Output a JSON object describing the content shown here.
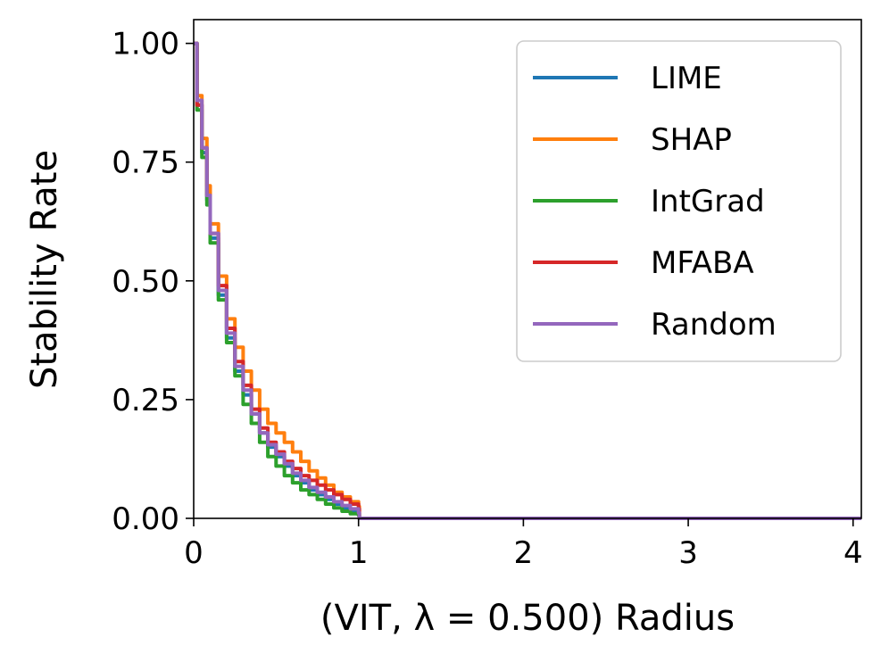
{
  "chart_data": {
    "type": "line",
    "title": "",
    "xlabel": "(VIT, λ = 0.500) Radius",
    "ylabel": "Stability Rate",
    "xlim": [
      0,
      4.05
    ],
    "ylim": [
      0,
      1.05
    ],
    "xticks": [
      0,
      1,
      2,
      3,
      4
    ],
    "xtick_labels": [
      "0",
      "1",
      "2",
      "3",
      "4"
    ],
    "yticks": [
      0,
      0.25,
      0.5,
      0.75,
      1.0
    ],
    "ytick_labels": [
      "0.00",
      "0.25",
      "0.50",
      "0.75",
      "1.00"
    ],
    "grid": false,
    "legend_position": "top-right",
    "series": [
      {
        "name": "LIME",
        "color": "#1f77b4",
        "x": [
          0,
          0.02,
          0.05,
          0.08,
          0.1,
          0.15,
          0.2,
          0.25,
          0.3,
          0.35,
          0.4,
          0.45,
          0.5,
          0.55,
          0.6,
          0.65,
          0.7,
          0.75,
          0.8,
          0.85,
          0.9,
          0.95,
          1.0,
          1.005,
          4.05
        ],
        "y": [
          1.0,
          0.87,
          0.77,
          0.67,
          0.59,
          0.47,
          0.38,
          0.31,
          0.26,
          0.22,
          0.18,
          0.15,
          0.13,
          0.11,
          0.09,
          0.075,
          0.06,
          0.05,
          0.04,
          0.03,
          0.022,
          0.015,
          0.01,
          0.0,
          0.0
        ]
      },
      {
        "name": "SHAP",
        "color": "#ff7f0e",
        "x": [
          0,
          0.02,
          0.05,
          0.08,
          0.1,
          0.15,
          0.2,
          0.25,
          0.3,
          0.35,
          0.4,
          0.45,
          0.5,
          0.55,
          0.6,
          0.65,
          0.7,
          0.75,
          0.8,
          0.85,
          0.9,
          0.95,
          1.0,
          1.005,
          4.05
        ],
        "y": [
          1.0,
          0.89,
          0.8,
          0.7,
          0.62,
          0.51,
          0.42,
          0.36,
          0.31,
          0.27,
          0.23,
          0.2,
          0.18,
          0.16,
          0.14,
          0.12,
          0.1,
          0.085,
          0.07,
          0.055,
          0.045,
          0.035,
          0.025,
          0.0,
          0.0
        ]
      },
      {
        "name": "IntGrad",
        "color": "#2ca02c",
        "x": [
          0,
          0.02,
          0.05,
          0.08,
          0.1,
          0.15,
          0.2,
          0.25,
          0.3,
          0.35,
          0.4,
          0.45,
          0.5,
          0.55,
          0.6,
          0.65,
          0.7,
          0.75,
          0.8,
          0.85,
          0.9,
          0.95,
          1.0,
          1.005,
          4.05
        ],
        "y": [
          1.0,
          0.86,
          0.76,
          0.66,
          0.58,
          0.46,
          0.37,
          0.3,
          0.24,
          0.2,
          0.16,
          0.13,
          0.11,
          0.09,
          0.075,
          0.06,
          0.05,
          0.04,
          0.03,
          0.022,
          0.015,
          0.01,
          0.006,
          0.0,
          0.0
        ]
      },
      {
        "name": "MFABA",
        "color": "#d62728",
        "x": [
          0,
          0.02,
          0.05,
          0.08,
          0.1,
          0.15,
          0.2,
          0.25,
          0.3,
          0.35,
          0.4,
          0.45,
          0.5,
          0.55,
          0.6,
          0.65,
          0.7,
          0.75,
          0.8,
          0.85,
          0.9,
          0.95,
          1.0,
          1.005,
          4.05
        ],
        "y": [
          1.0,
          0.87,
          0.78,
          0.68,
          0.6,
          0.49,
          0.4,
          0.33,
          0.28,
          0.23,
          0.19,
          0.16,
          0.14,
          0.12,
          0.105,
          0.09,
          0.08,
          0.07,
          0.06,
          0.05,
          0.04,
          0.03,
          0.02,
          0.0,
          0.0
        ]
      },
      {
        "name": "Random",
        "color": "#9467bd",
        "x": [
          0,
          0.02,
          0.05,
          0.08,
          0.1,
          0.15,
          0.2,
          0.25,
          0.3,
          0.35,
          0.4,
          0.45,
          0.5,
          0.55,
          0.6,
          0.65,
          0.7,
          0.75,
          0.8,
          0.85,
          0.9,
          0.95,
          1.0,
          1.005,
          4.05
        ],
        "y": [
          1.0,
          0.88,
          0.78,
          0.68,
          0.6,
          0.48,
          0.39,
          0.32,
          0.27,
          0.22,
          0.18,
          0.155,
          0.135,
          0.115,
          0.095,
          0.08,
          0.065,
          0.055,
          0.045,
          0.035,
          0.027,
          0.02,
          0.012,
          0.0,
          0.0
        ]
      }
    ]
  }
}
